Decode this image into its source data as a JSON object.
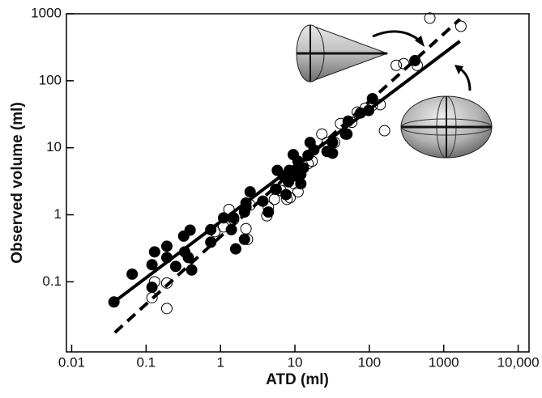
{
  "chart_data": {
    "type": "scatter",
    "x_label": "ATD (ml)",
    "y_label": "Observed volume (ml)",
    "log_x": true,
    "log_y": true,
    "xlim": [
      0.0085,
      14000
    ],
    "ylim": [
      0.009,
      1000
    ],
    "xticks": [
      0.01,
      0.1,
      1,
      10,
      100,
      1000,
      {
        "value": 10000,
        "label": "10,000"
      }
    ],
    "yticks": [
      0.1,
      1,
      10,
      100,
      1000
    ],
    "series": [
      {
        "marker": "filled",
        "color": "#000000",
        "x": [
          0.037,
          0.065,
          0.12,
          0.13,
          0.19,
          0.12,
          0.25,
          0.19,
          0.32,
          0.39,
          0.33,
          0.37,
          0.41,
          0.74,
          0.74,
          1.1,
          1.4,
          1.5,
          2.1,
          2.2,
          1.6,
          2.1,
          2.5,
          2.2,
          4.4,
          3.7,
          5.5,
          5.8,
          7.0,
          7.6,
          8.2,
          10,
          9.5,
          11,
          12,
          13,
          15,
          9.8,
          8.4,
          12,
          16,
          18,
          27,
          32,
          48,
          52,
          50,
          76,
          98,
          110,
          410,
          32
        ],
        "values": [
          0.05,
          0.13,
          0.18,
          0.28,
          0.34,
          0.083,
          0.17,
          0.23,
          0.48,
          0.59,
          0.28,
          0.23,
          0.15,
          0.39,
          0.6,
          0.9,
          0.6,
          0.9,
          1.1,
          1.5,
          0.31,
          0.43,
          2.2,
          1.3,
          1.1,
          1.6,
          2.4,
          4.6,
          3.8,
          2.0,
          3.1,
          4.6,
          7.9,
          6.3,
          4.0,
          5.0,
          7.7,
          3.8,
          4.6,
          2.9,
          12,
          9.3,
          8.8,
          8.3,
          16,
          25,
          16,
          33,
          36,
          54,
          200,
          12
        ]
      },
      {
        "marker": "open",
        "color": "#000000",
        "x": [
          0.12,
          0.19,
          0.19,
          0.13,
          0.84,
          1.1,
          1.5,
          1.3,
          2.2,
          2.3,
          4.2,
          4.4,
          2.5,
          5.3,
          6.5,
          7.8,
          5.6,
          9.8,
          11,
          8.6,
          15,
          17,
          23,
          27,
          34,
          41,
          58,
          69,
          88,
          110,
          140,
          160,
          230,
          290,
          650,
          1700,
          440
        ],
        "values": [
          0.058,
          0.096,
          0.04,
          0.1,
          0.56,
          0.66,
          0.85,
          1.2,
          0.62,
          0.43,
          0.97,
          1.3,
          1.4,
          1.7,
          2.3,
          1.7,
          2.4,
          2.9,
          2.2,
          1.8,
          5.8,
          6.3,
          16,
          12,
          12,
          23,
          24,
          34,
          39,
          43,
          44,
          18,
          170,
          180,
          860,
          650,
          170
        ]
      }
    ],
    "lines": [
      {
        "dash": false,
        "color": "#000000",
        "x": [
          0.037,
          1650
        ],
        "values": [
          0.05,
          390
        ]
      },
      {
        "dash": true,
        "color": "#000000",
        "x": [
          0.038,
          1650
        ],
        "values": [
          0.0175,
          830
        ]
      }
    ]
  }
}
